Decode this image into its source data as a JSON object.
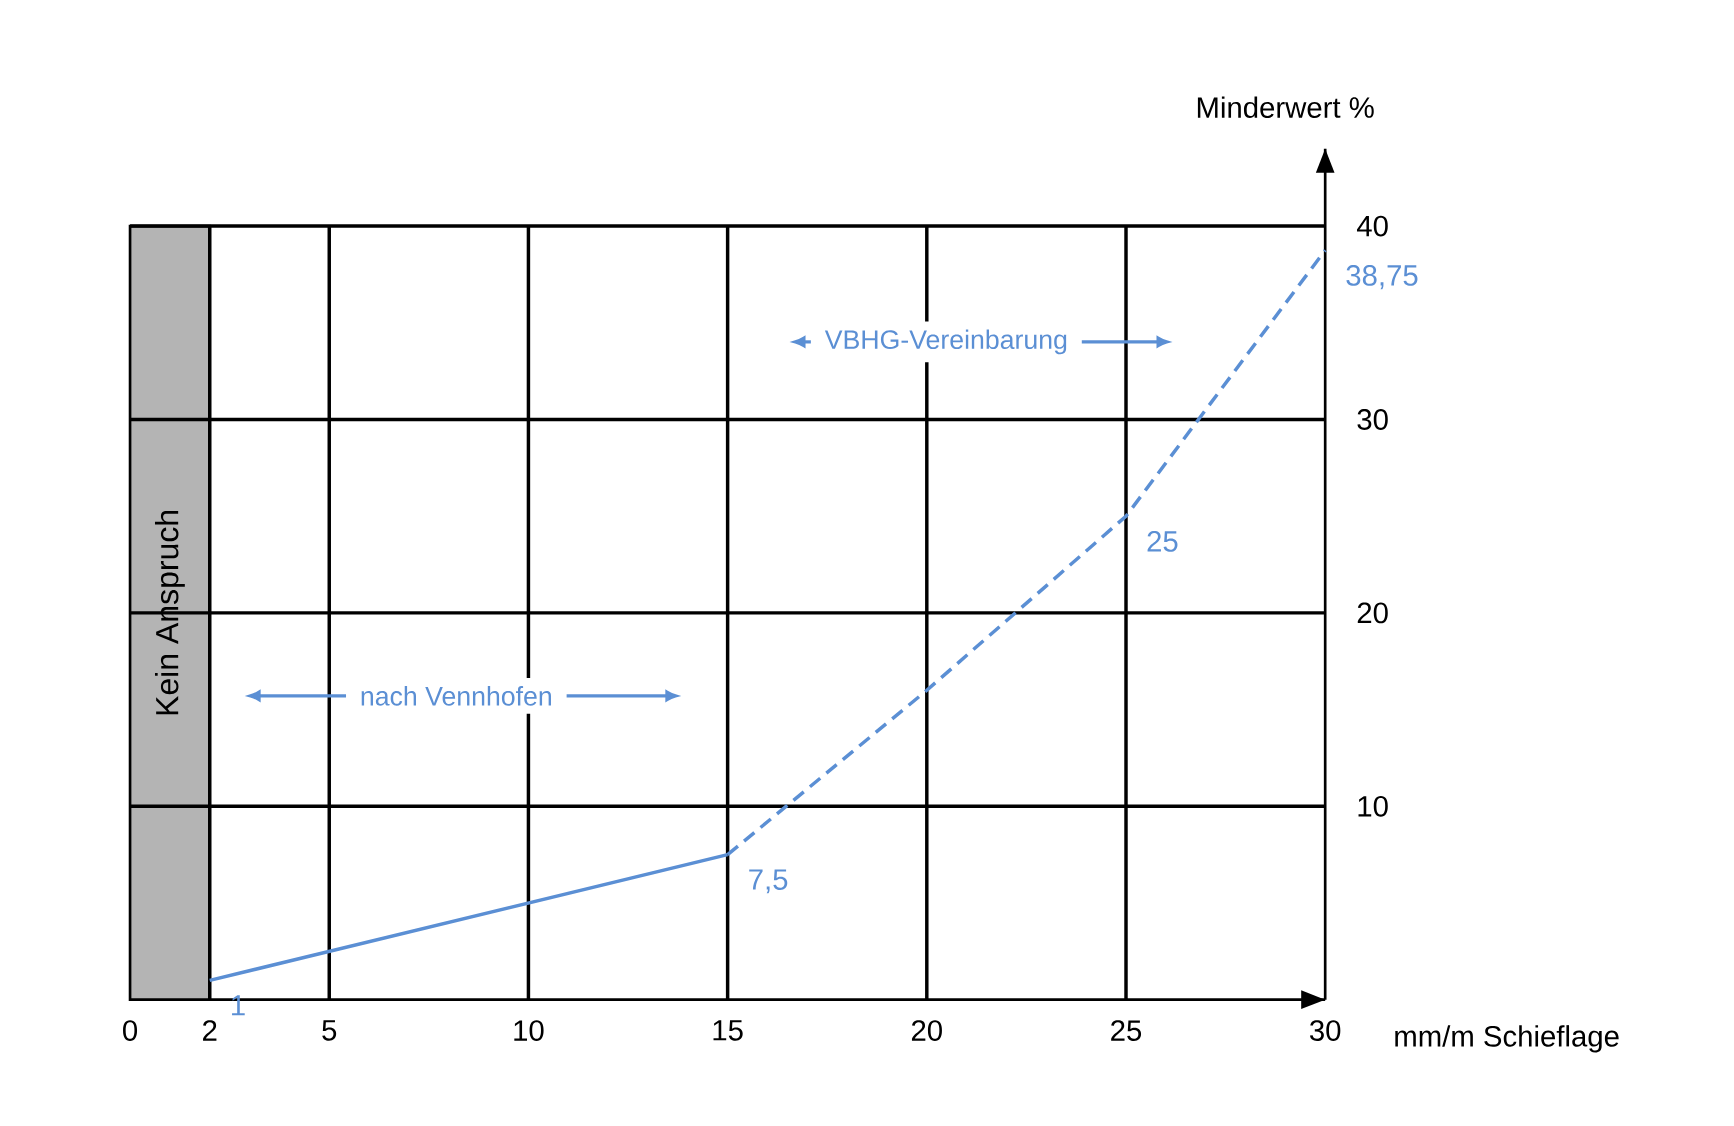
{
  "chart_data": {
    "type": "line",
    "xlabel": "mm/m Schieflage",
    "ylabel": "Minderwert %",
    "xlim": [
      0,
      30
    ],
    "ylim": [
      0,
      44
    ],
    "xticks": [
      0,
      2,
      5,
      10,
      15,
      20,
      25,
      30
    ],
    "yticks": [
      10,
      20,
      30,
      40
    ],
    "grid": true,
    "marker": "none",
    "series": [
      {
        "color": "#5b8fd4",
        "line_style": "solid",
        "x": [
          2,
          15
        ],
        "values": [
          1,
          7.5
        ],
        "value_labels": [
          "1",
          null
        ]
      },
      {
        "color": "#5b8fd4",
        "line_style": "dashed",
        "x": [
          15,
          20,
          25,
          30
        ],
        "values": [
          7.5,
          16,
          25,
          38.75
        ],
        "value_labels": [
          "7,5",
          null,
          "25",
          "38,75"
        ]
      }
    ],
    "bands": [
      {
        "axis": "x",
        "from": 0,
        "to": 2,
        "label": "Kein Anspruch",
        "color": "#b4b4b4"
      }
    ],
    "annotations": [
      "nach Vennhofen",
      "VBHG-Vereinbarung"
    ]
  }
}
